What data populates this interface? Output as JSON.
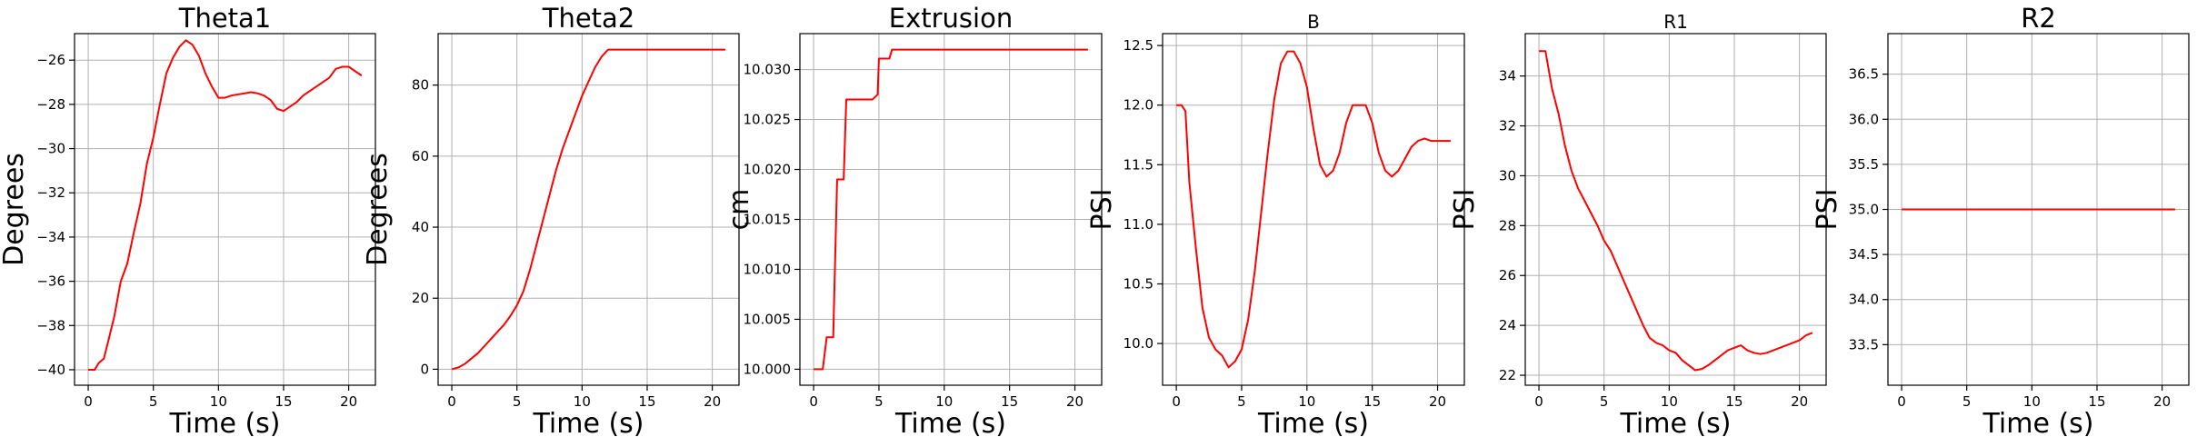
{
  "chart_data": [
    {
      "type": "line",
      "title": "Theta1",
      "title_size": "large",
      "xlabel": "Time (s)",
      "ylabel": "Degrees",
      "xlim": [
        -1.05,
        22.05
      ],
      "ylim": [
        -40.7,
        -24.8
      ],
      "xticks": [
        0,
        5,
        10,
        15,
        20
      ],
      "xtick_labels": [
        "0",
        "5",
        "10",
        "15",
        "20"
      ],
      "yticks": [
        -40,
        -38,
        -36,
        -34,
        -32,
        -30,
        -28,
        -26
      ],
      "ytick_labels": [
        "−40",
        "−38",
        "−36",
        "−34",
        "−32",
        "−30",
        "−28",
        "−26"
      ],
      "grid": true,
      "series": [
        {
          "color": "#ff0000",
          "x": [
            0,
            0.5,
            0.8,
            1.2,
            1.5,
            2,
            2.5,
            3,
            3.5,
            4,
            4.5,
            5,
            5.5,
            6,
            6.5,
            7,
            7.5,
            8,
            8.5,
            9,
            9.5,
            10,
            10.5,
            11,
            11.5,
            12,
            12.5,
            13,
            13.5,
            14,
            14.5,
            15,
            15.5,
            16,
            16.5,
            17,
            17.5,
            18,
            18.5,
            19,
            19.5,
            20,
            20.5,
            21
          ],
          "y": [
            -40,
            -40,
            -39.7,
            -39.5,
            -38.8,
            -37.6,
            -36,
            -35.2,
            -33.8,
            -32.5,
            -30.7,
            -29.5,
            -28,
            -26.6,
            -25.9,
            -25.4,
            -25.1,
            -25.3,
            -25.8,
            -26.6,
            -27.2,
            -27.7,
            -27.7,
            -27.6,
            -27.55,
            -27.5,
            -27.45,
            -27.5,
            -27.6,
            -27.8,
            -28.2,
            -28.3,
            -28.1,
            -27.9,
            -27.6,
            -27.4,
            -27.2,
            -27.0,
            -26.8,
            -26.4,
            -26.3,
            -26.3,
            -26.5,
            -26.7
          ]
        }
      ]
    },
    {
      "type": "line",
      "title": "Theta2",
      "title_size": "large",
      "xlabel": "Time (s)",
      "ylabel": "Degrees",
      "xlim": [
        -1.05,
        22.05
      ],
      "ylim": [
        -4.5,
        94.5
      ],
      "xticks": [
        0,
        5,
        10,
        15,
        20
      ],
      "xtick_labels": [
        "0",
        "5",
        "10",
        "15",
        "20"
      ],
      "yticks": [
        0,
        20,
        40,
        60,
        80
      ],
      "ytick_labels": [
        "0",
        "20",
        "40",
        "60",
        "80"
      ],
      "grid": true,
      "series": [
        {
          "color": "#ff0000",
          "x": [
            0,
            0.5,
            1,
            1.5,
            2,
            2.5,
            3,
            3.5,
            4,
            4.5,
            5,
            5.5,
            6,
            6.5,
            7,
            7.5,
            8,
            8.5,
            9,
            9.5,
            10,
            10.5,
            11,
            11.5,
            12,
            13,
            14,
            15,
            16,
            17,
            18,
            19,
            20,
            21
          ],
          "y": [
            0,
            0.5,
            1.5,
            3,
            4.5,
            6.5,
            8.5,
            10.5,
            12.5,
            15,
            18,
            22,
            28,
            35,
            42,
            49,
            56,
            62,
            67,
            72,
            77,
            81,
            85,
            88,
            90,
            90,
            90,
            90,
            90,
            90,
            90,
            90,
            90,
            90
          ]
        }
      ]
    },
    {
      "type": "line",
      "title": "Extrusion",
      "title_size": "large",
      "xlabel": "Time (s)",
      "ylabel": "cm",
      "xlim": [
        -1.05,
        22.05
      ],
      "ylim": [
        9.9984,
        10.0336
      ],
      "xticks": [
        0,
        5,
        10,
        15,
        20
      ],
      "xtick_labels": [
        "0",
        "5",
        "10",
        "15",
        "20"
      ],
      "yticks": [
        10.0,
        10.005,
        10.01,
        10.015,
        10.02,
        10.025,
        10.03
      ],
      "ytick_labels": [
        "10.000",
        "10.005",
        "10.010",
        "10.015",
        "10.020",
        "10.025",
        "10.030"
      ],
      "grid": true,
      "series": [
        {
          "color": "#ff0000",
          "x": [
            0,
            0.7,
            1,
            1.5,
            1.8,
            2.3,
            2.5,
            3,
            4.5,
            4.9,
            5,
            5.5,
            5.8,
            6,
            21
          ],
          "y": [
            10,
            10,
            10.0032,
            10.0032,
            10.019,
            10.019,
            10.027,
            10.027,
            10.027,
            10.0275,
            10.0311,
            10.0311,
            10.0311,
            10.032,
            10.032
          ]
        }
      ]
    },
    {
      "type": "line",
      "title": "B",
      "title_size": "small",
      "xlabel": "Time (s)",
      "ylabel": "PSI",
      "xlim": [
        -1.05,
        22.05
      ],
      "ylim": [
        9.65,
        12.6
      ],
      "xticks": [
        0,
        5,
        10,
        15,
        20
      ],
      "xtick_labels": [
        "0",
        "5",
        "10",
        "15",
        "20"
      ],
      "yticks": [
        10.0,
        10.5,
        11.0,
        11.5,
        12.0,
        12.5
      ],
      "ytick_labels": [
        "10.0",
        "10.5",
        "11.0",
        "11.5",
        "12.0",
        "12.5"
      ],
      "grid": true,
      "series": [
        {
          "color": "#ff0000",
          "x": [
            0,
            0.4,
            0.7,
            1,
            1.5,
            2,
            2.5,
            3,
            3.5,
            4,
            4.5,
            5,
            5.5,
            6,
            6.5,
            7,
            7.5,
            8,
            8.5,
            9,
            9.5,
            10,
            10.5,
            11,
            11.5,
            12,
            12.5,
            13,
            13.5,
            14,
            14.5,
            15,
            15.5,
            16,
            16.5,
            17,
            17.5,
            18,
            18.5,
            19,
            19.5,
            20,
            20.5,
            21
          ],
          "y": [
            12,
            12,
            11.95,
            11.35,
            10.8,
            10.3,
            10.05,
            9.95,
            9.9,
            9.8,
            9.85,
            9.95,
            10.2,
            10.6,
            11.1,
            11.6,
            12.05,
            12.35,
            12.45,
            12.45,
            12.35,
            12.15,
            11.8,
            11.5,
            11.4,
            11.45,
            11.6,
            11.85,
            12.0,
            12.0,
            12.0,
            11.85,
            11.6,
            11.45,
            11.4,
            11.45,
            11.55,
            11.65,
            11.7,
            11.72,
            11.7,
            11.7,
            11.7,
            11.7
          ]
        }
      ]
    },
    {
      "type": "line",
      "title": "R1",
      "title_size": "small",
      "xlabel": "Time (s)",
      "ylabel": "PSI",
      "xlim": [
        -1.05,
        22.05
      ],
      "ylim": [
        21.6,
        35.7
      ],
      "xticks": [
        0,
        5,
        10,
        15,
        20
      ],
      "xtick_labels": [
        "0",
        "5",
        "10",
        "15",
        "20"
      ],
      "yticks": [
        22,
        24,
        26,
        28,
        30,
        32,
        34
      ],
      "ytick_labels": [
        "22",
        "24",
        "26",
        "28",
        "30",
        "32",
        "34"
      ],
      "grid": true,
      "series": [
        {
          "color": "#ff0000",
          "x": [
            0,
            0.5,
            1,
            1.5,
            2,
            2.5,
            3,
            3.5,
            4,
            4.5,
            5,
            5.5,
            6,
            6.5,
            7,
            7.5,
            8,
            8.5,
            9,
            9.5,
            10,
            10.5,
            11,
            11.5,
            12,
            12.5,
            13,
            13.5,
            14,
            14.5,
            15,
            15.5,
            16,
            16.5,
            17,
            17.5,
            18,
            18.5,
            19,
            19.5,
            20,
            20.5,
            21
          ],
          "y": [
            35,
            35,
            33.5,
            32.5,
            31.2,
            30.2,
            29.5,
            29,
            28.5,
            28,
            27.4,
            27,
            26.4,
            25.8,
            25.2,
            24.6,
            24,
            23.5,
            23.3,
            23.2,
            23.0,
            22.9,
            22.6,
            22.4,
            22.2,
            22.25,
            22.4,
            22.6,
            22.8,
            23.0,
            23.1,
            23.2,
            23.0,
            22.9,
            22.85,
            22.9,
            23.0,
            23.1,
            23.2,
            23.3,
            23.4,
            23.6,
            23.7
          ]
        }
      ]
    },
    {
      "type": "line",
      "title": "R2",
      "title_size": "large",
      "xlabel": "Time (s)",
      "ylabel": "PSI",
      "xlim": [
        -1.05,
        22.05
      ],
      "ylim": [
        33.05,
        36.95
      ],
      "xticks": [
        0,
        5,
        10,
        15,
        20
      ],
      "xtick_labels": [
        "0",
        "5",
        "10",
        "15",
        "20"
      ],
      "yticks": [
        33.5,
        34.0,
        34.5,
        35.0,
        35.5,
        36.0,
        36.5
      ],
      "ytick_labels": [
        "33.5",
        "34.0",
        "34.5",
        "35.0",
        "35.5",
        "36.0",
        "36.5"
      ],
      "grid": true,
      "series": [
        {
          "color": "#ff0000",
          "x": [
            0,
            21
          ],
          "y": [
            35,
            35
          ]
        }
      ]
    }
  ]
}
